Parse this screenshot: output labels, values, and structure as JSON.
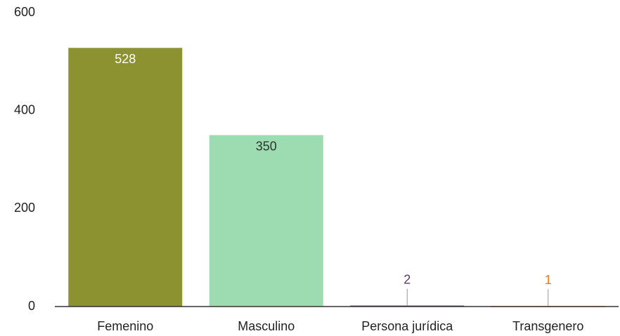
{
  "chart_data": {
    "type": "bar",
    "categories": [
      "Femenino",
      "Masculino",
      "Persona jurídica",
      "Transgenero"
    ],
    "values": [
      528,
      350,
      2,
      1
    ],
    "colors": [
      "#8d9231",
      "#9ddcb0",
      "#5e3a72",
      "#f57c00"
    ],
    "ylim": [
      0,
      600
    ],
    "yticks": [
      0,
      200,
      400,
      600
    ],
    "grid": false
  }
}
